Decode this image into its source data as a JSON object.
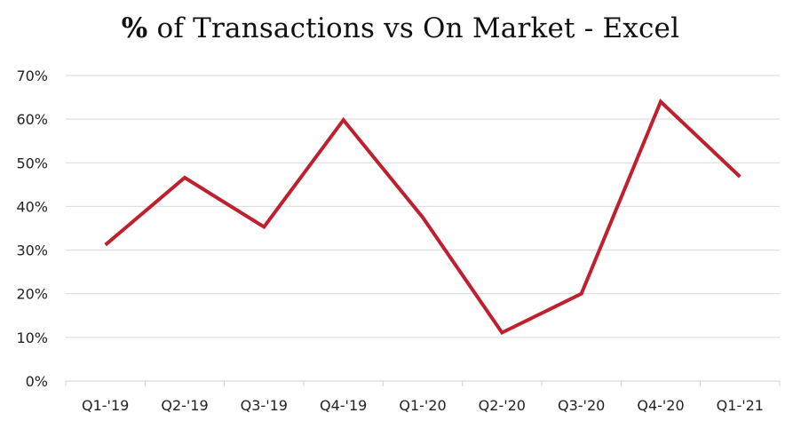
{
  "chart_data": {
    "type": "line",
    "title": "% of Transactions vs On Market - Excel",
    "title_prefix": "%",
    "title_rest": " of Transactions vs On Market - Excel",
    "xlabel": "",
    "ylabel": "",
    "categories": [
      "Q1-'19",
      "Q2-'19",
      "Q3-'19",
      "Q4-'19",
      "Q1-'20",
      "Q2-'20",
      "Q3-'20",
      "Q4-'20",
      "Q1-'21"
    ],
    "series": [
      {
        "values": [
          31.2,
          46.6,
          35.3,
          59.8,
          37.5,
          11.1,
          20.0,
          64.0,
          46.8
        ],
        "color": "#c01f2e"
      }
    ],
    "ylim": [
      0,
      70
    ],
    "yticks": [
      0,
      10,
      20,
      30,
      40,
      50,
      60,
      70
    ],
    "ytick_labels": [
      "0%",
      "10%",
      "20%",
      "30%",
      "40%",
      "50%",
      "60%",
      "70%"
    ],
    "grid": true,
    "legend": "none"
  }
}
